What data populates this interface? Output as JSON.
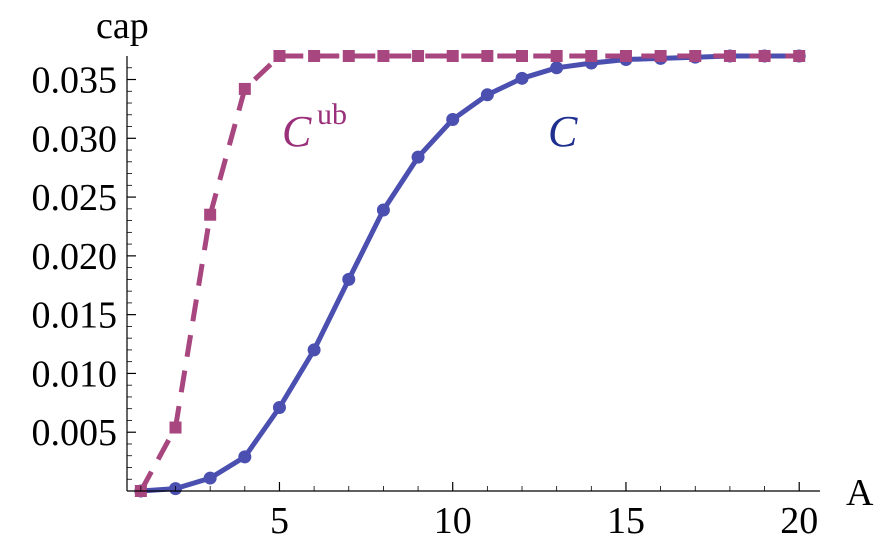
{
  "chart_data": {
    "type": "line",
    "xlabel": "A",
    "ylabel": "cap",
    "xlim": [
      0.6,
      20.6
    ],
    "ylim": [
      0,
      0.037
    ],
    "xticks": [
      5,
      10,
      15,
      20
    ],
    "xtick_labels": [
      "5",
      "10",
      "15",
      "20"
    ],
    "yticks": [
      0.005,
      0.01,
      0.015,
      0.02,
      0.025,
      0.03,
      0.035
    ],
    "ytick_labels": [
      "0.005",
      "0.010",
      "0.015",
      "0.020",
      "0.025",
      "0.030",
      "0.035"
    ],
    "grid": false,
    "series": [
      {
        "name": "C",
        "label_main": "C",
        "label_sup": "",
        "color": "#4a4fb0",
        "style": "solid",
        "marker": "circle",
        "x": [
          1,
          2,
          3,
          4,
          5,
          6,
          7,
          8,
          9,
          10,
          11,
          12,
          13,
          14,
          15,
          16,
          17,
          18,
          19,
          20
        ],
        "values": [
          0.0,
          0.0002,
          0.0011,
          0.0029,
          0.0071,
          0.012,
          0.018,
          0.0239,
          0.0284,
          0.0316,
          0.0337,
          0.0351,
          0.036,
          0.0364,
          0.0367,
          0.0368,
          0.0369,
          0.037,
          0.037,
          0.037
        ]
      },
      {
        "name": "Cub",
        "label_main": "C",
        "label_sup": "ub",
        "color": "#a8467f",
        "style": "dashed",
        "marker": "square",
        "x": [
          1,
          2,
          3,
          4,
          5,
          6,
          7,
          8,
          9,
          10,
          11,
          12,
          13,
          14,
          15,
          16,
          17,
          18,
          19,
          20
        ],
        "values": [
          0.0,
          0.0054,
          0.0235,
          0.0342,
          0.037,
          0.037,
          0.037,
          0.037,
          0.037,
          0.037,
          0.037,
          0.037,
          0.037,
          0.037,
          0.037,
          0.037,
          0.037,
          0.037,
          0.037,
          0.037
        ]
      }
    ]
  }
}
